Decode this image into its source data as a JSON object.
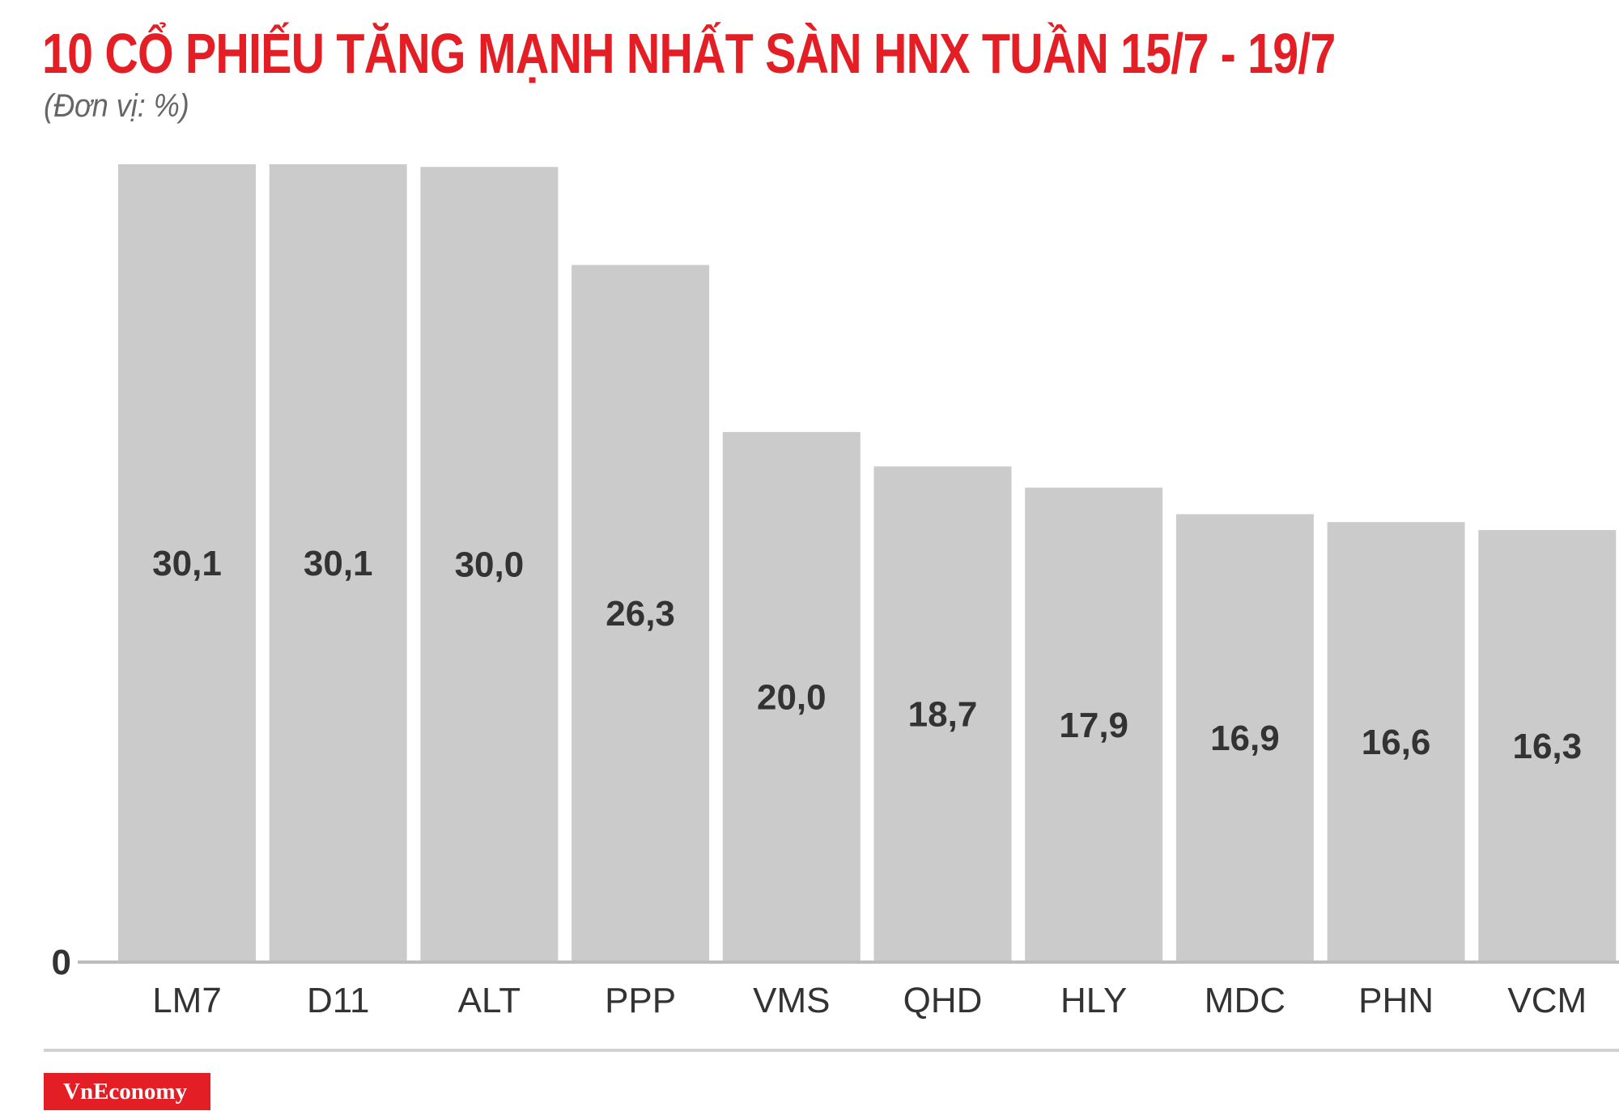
{
  "title": "10 CỔ PHIẾU TĂNG MẠNH NHẤT SÀN HNX TUẦN 15/7 - 19/7",
  "subtitle": "(Đơn vị: %)",
  "brand": {
    "logo_text": "VnEconomy",
    "logo_color": "#e31e24"
  },
  "colors": {
    "title": "#e31e24",
    "bar": "#cccbcc",
    "axis": "#bdbdbd",
    "label": "#333333"
  },
  "chart_data": {
    "type": "bar",
    "title": "10 CỔ PHIẾU TĂNG MẠNH NHẤT SÀN HNX TUẦN 15/7 - 19/7",
    "unit": "(Đơn vị: %)",
    "categories": [
      "LM7",
      "D11",
      "ALT",
      "PPP",
      "VMS",
      "QHD",
      "HLY",
      "MDC",
      "PHN",
      "VCM"
    ],
    "values": [
      30.1,
      30.1,
      30.0,
      26.3,
      20.0,
      18.7,
      17.9,
      16.9,
      16.6,
      16.3
    ],
    "value_labels": [
      "30,1",
      "30,1",
      "30,0",
      "26,3",
      "20,0",
      "18,7",
      "17,9",
      "16,9",
      "16,6",
      "16,3"
    ],
    "y_tick_labels": [
      "0"
    ],
    "ylim": [
      0,
      30.1
    ],
    "xlabel": "",
    "ylabel": "",
    "grid": false,
    "legend": "none"
  }
}
